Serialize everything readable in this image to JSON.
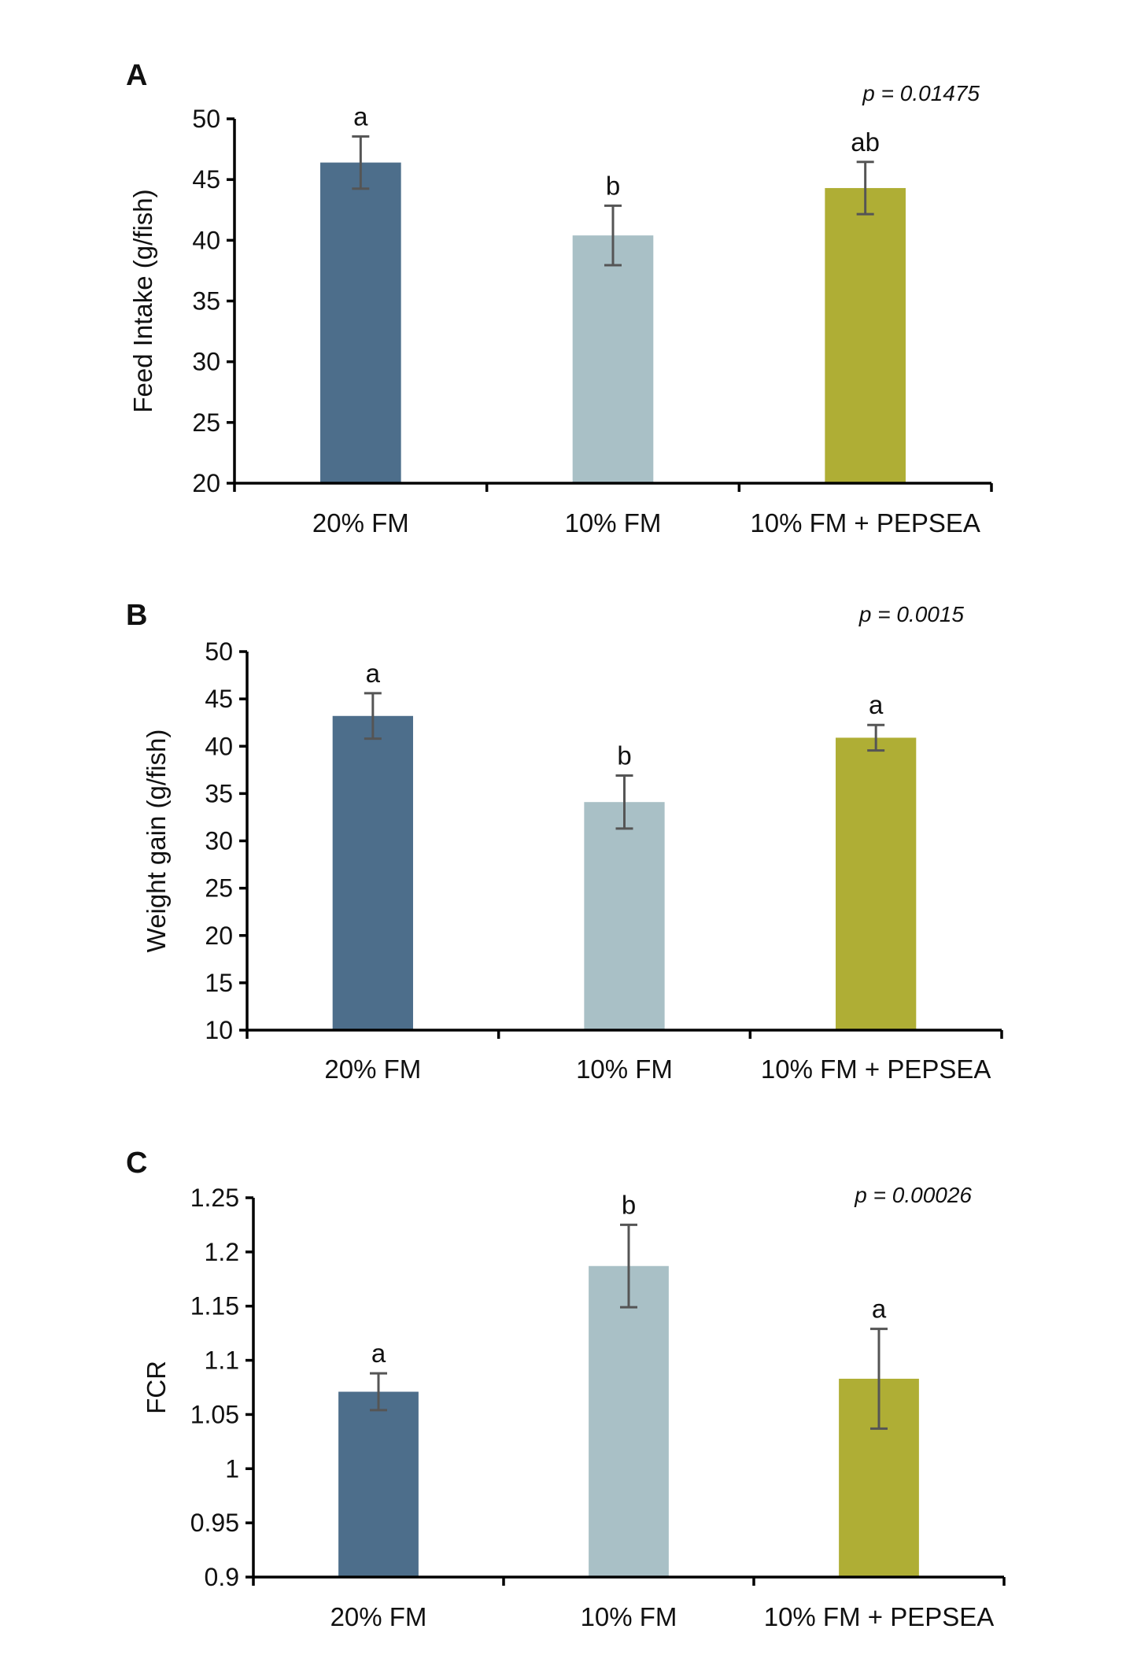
{
  "chart_data": [
    {
      "type": "bar",
      "panel": "A",
      "categories": [
        "20% FM",
        "10% FM",
        "10% FM + PEPSEA"
      ],
      "values": [
        46.4,
        40.4,
        44.3
      ],
      "errors": [
        2.15,
        2.45,
        2.15
      ],
      "letters": [
        "a",
        "b",
        "ab"
      ],
      "ylabel": "Feed Intake (g/fish)",
      "ylim": [
        20,
        50
      ],
      "yticks": [
        "20",
        "25",
        "30",
        "35",
        "40",
        "45",
        "50"
      ],
      "annotation": "p = 0.01475",
      "colors": [
        "#4d6e8b",
        "#a9c0c6",
        "#afae35"
      ]
    },
    {
      "type": "bar",
      "panel": "B",
      "categories": [
        "20% FM",
        "10% FM",
        "10% FM + PEPSEA"
      ],
      "values": [
        43.2,
        34.1,
        40.9
      ],
      "errors": [
        2.4,
        2.8,
        1.35
      ],
      "letters": [
        "a",
        "b",
        "a"
      ],
      "ylabel": "Weight gain (g/fish)",
      "ylim": [
        10,
        50
      ],
      "yticks": [
        "10",
        "15",
        "20",
        "25",
        "30",
        "35",
        "40",
        "45",
        "50"
      ],
      "annotation": "p = 0.0015",
      "colors": [
        "#4d6e8b",
        "#a9c0c6",
        "#afae35"
      ]
    },
    {
      "type": "bar",
      "panel": "C",
      "categories": [
        "20% FM",
        "10% FM",
        "10% FM + PEPSEA"
      ],
      "values": [
        1.071,
        1.187,
        1.083
      ],
      "errors": [
        0.017,
        0.038,
        0.046
      ],
      "letters": [
        "a",
        "b",
        "a"
      ],
      "ylabel": "FCR",
      "ylim": [
        0.9,
        1.25
      ],
      "yticks": [
        "0.9",
        "0.95",
        "1",
        "1.05",
        "1.1",
        "1.15",
        "1.2",
        "1.25"
      ],
      "annotation": "p = 0.00026",
      "colors": [
        "#4d6e8b",
        "#a9c0c6",
        "#afae35"
      ]
    }
  ]
}
